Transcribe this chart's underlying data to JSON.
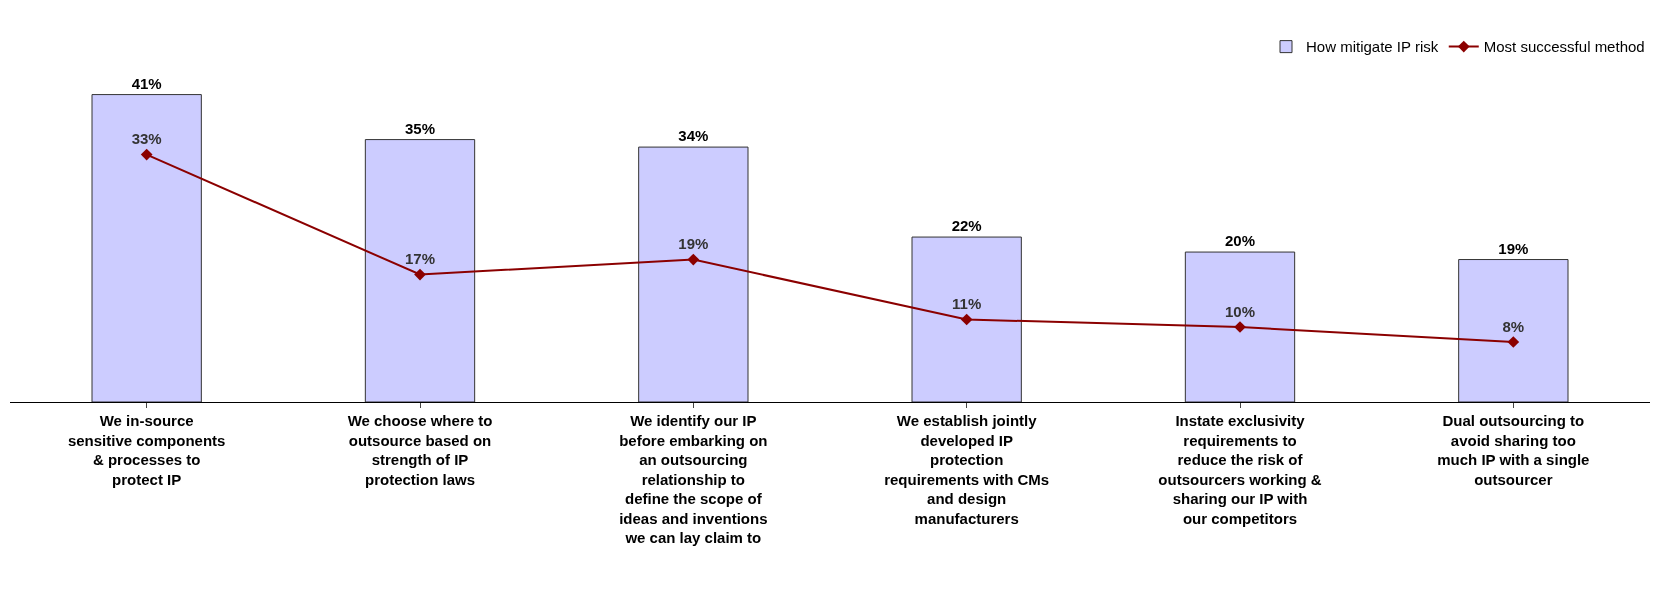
{
  "chart_data": {
    "type": "bar",
    "categories": [
      "We in-source sensitive components & processes to protect IP",
      "We choose where to outsource based on strength of IP protection laws",
      "We identify our IP before embarking on an outsourcing relationship to define the scope of ideas and inventions we can lay claim to",
      "We establish jointly developed IP protection requirements with CMs and design manufacturers",
      "Instate exclusivity requirements to reduce the risk of outsourcers working & sharing our IP with our competitors",
      "Dual outsourcing to avoid sharing too much IP with a single outsourcer"
    ],
    "series": [
      {
        "name": "How mitigate IP risk",
        "color": "#ccccff",
        "values": [
          41,
          35,
          34,
          22,
          20,
          19
        ],
        "value_labels": [
          "41%",
          "35%",
          "34%",
          "22%",
          "20%",
          "19%"
        ]
      },
      {
        "name": "Most successful method",
        "type": "line",
        "color": "#8b0000",
        "marker": "diamond",
        "values": [
          33,
          17,
          19,
          11,
          10,
          8
        ],
        "value_labels": [
          "33%",
          "17%",
          "19%",
          "11%",
          "10%",
          "8%"
        ]
      }
    ],
    "legend": "top right"
  }
}
